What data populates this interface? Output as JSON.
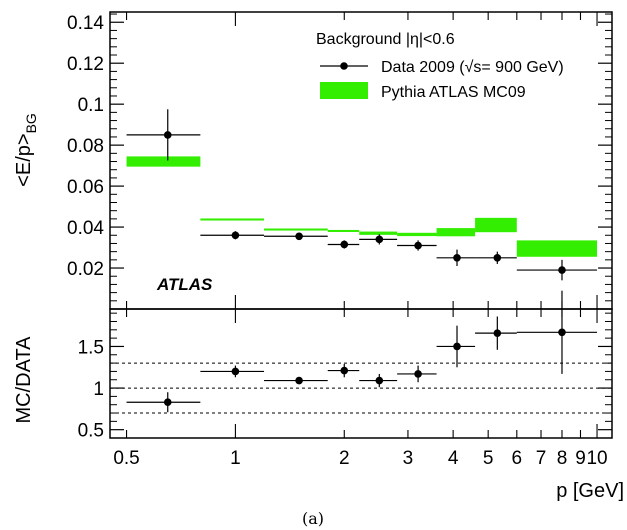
{
  "chart_data": [
    {
      "type": "scatter",
      "panel": "top",
      "ylabel_main": "<E/p>",
      "ylabel_sub": "BG",
      "ylim": [
        0,
        0.145
      ],
      "yticks": [
        {
          "value": 0.02,
          "label": "0.02"
        },
        {
          "value": 0.04,
          "label": "0.04"
        },
        {
          "value": 0.06,
          "label": "0.06"
        },
        {
          "value": 0.08,
          "label": "0.08"
        },
        {
          "value": 0.1,
          "label": "0.1"
        },
        {
          "value": 0.12,
          "label": "0.12"
        },
        {
          "value": 0.14,
          "label": "0.14"
        }
      ],
      "legend_title": "Background |η|<0.6",
      "legend_placement": "top-right",
      "annotation": "ATLAS",
      "series": [
        {
          "name": "Data 2009 (√s= 900 GeV)",
          "kind": "points-with-errors",
          "color": "#000000",
          "points": [
            {
              "x": 0.65,
              "xlo": 0.5,
              "xhi": 0.8,
              "y": 0.085,
              "yerr": 0.0125
            },
            {
              "x": 1.0,
              "xlo": 0.8,
              "xhi": 1.2,
              "y": 0.036,
              "yerr": 0.002
            },
            {
              "x": 1.5,
              "xlo": 1.2,
              "xhi": 1.8,
              "y": 0.0355,
              "yerr": 0.0012
            },
            {
              "x": 2.0,
              "xlo": 1.8,
              "xhi": 2.2,
              "y": 0.0315,
              "yerr": 0.002
            },
            {
              "x": 2.5,
              "xlo": 2.2,
              "xhi": 2.8,
              "y": 0.034,
              "yerr": 0.0025
            },
            {
              "x": 3.2,
              "xlo": 2.8,
              "xhi": 3.6,
              "y": 0.031,
              "yerr": 0.0025
            },
            {
              "x": 4.1,
              "xlo": 3.6,
              "xhi": 4.6,
              "y": 0.025,
              "yerr": 0.004
            },
            {
              "x": 5.3,
              "xlo": 4.6,
              "xhi": 6.0,
              "y": 0.025,
              "yerr": 0.003
            },
            {
              "x": 8.0,
              "xlo": 6.0,
              "xhi": 10.0,
              "y": 0.019,
              "yerr": 0.005
            }
          ]
        },
        {
          "name": "Pythia ATLAS MC09",
          "kind": "bands",
          "color": "#33ee00",
          "bins": [
            {
              "xlo": 0.5,
              "xhi": 0.8,
              "ylo": 0.0695,
              "yhi": 0.0745
            },
            {
              "xlo": 0.8,
              "xhi": 1.2,
              "ylo": 0.0432,
              "yhi": 0.0442
            },
            {
              "xlo": 1.2,
              "xhi": 1.8,
              "ylo": 0.0383,
              "yhi": 0.0393
            },
            {
              "xlo": 1.8,
              "xhi": 2.2,
              "ylo": 0.0376,
              "yhi": 0.0386
            },
            {
              "xlo": 2.2,
              "xhi": 2.8,
              "ylo": 0.0362,
              "yhi": 0.0378
            },
            {
              "xlo": 2.8,
              "xhi": 3.6,
              "ylo": 0.0356,
              "yhi": 0.0372
            },
            {
              "xlo": 3.6,
              "xhi": 4.6,
              "ylo": 0.0355,
              "yhi": 0.0395
            },
            {
              "xlo": 4.6,
              "xhi": 6.0,
              "ylo": 0.0375,
              "yhi": 0.0445
            },
            {
              "xlo": 6.0,
              "xhi": 10.0,
              "ylo": 0.0255,
              "yhi": 0.0335
            }
          ]
        }
      ]
    },
    {
      "type": "scatter",
      "panel": "bottom",
      "ylabel": "MC/DATA",
      "xlabel": "p [GeV]",
      "xscale": "log",
      "xlim": [
        0.45,
        11.0
      ],
      "ylim": [
        0.4,
        1.95
      ],
      "yticks": [
        {
          "value": 0.5,
          "label": "0.5"
        },
        {
          "value": 1.0,
          "label": "1"
        },
        {
          "value": 1.5,
          "label": "1.5"
        }
      ],
      "xticks": [
        {
          "value": 0.5,
          "label": "0.5"
        },
        {
          "value": 1,
          "label": "1"
        },
        {
          "value": 2,
          "label": "2"
        },
        {
          "value": 3,
          "label": "3"
        },
        {
          "value": 4,
          "label": "4"
        },
        {
          "value": 5,
          "label": "5"
        },
        {
          "value": 6,
          "label": "6"
        },
        {
          "value": 7,
          "label": "7"
        },
        {
          "value": 8,
          "label": "8"
        },
        {
          "value": 9,
          "label": "9"
        },
        {
          "value": 10,
          "label": "10"
        }
      ],
      "reference_lines": [
        0.7,
        1.0,
        1.3
      ],
      "series": [
        {
          "kind": "points-with-errors",
          "color": "#000000",
          "points": [
            {
              "x": 0.65,
              "xlo": 0.5,
              "xhi": 0.8,
              "y": 0.83,
              "yerr": 0.12
            },
            {
              "x": 1.0,
              "xlo": 0.8,
              "xhi": 1.2,
              "y": 1.2,
              "yerr": 0.07
            },
            {
              "x": 1.5,
              "xlo": 1.2,
              "xhi": 1.8,
              "y": 1.09,
              "yerr": 0.04
            },
            {
              "x": 2.0,
              "xlo": 1.8,
              "xhi": 2.2,
              "y": 1.21,
              "yerr": 0.08
            },
            {
              "x": 2.5,
              "xlo": 2.2,
              "xhi": 2.8,
              "y": 1.09,
              "yerr": 0.08
            },
            {
              "x": 3.2,
              "xlo": 2.8,
              "xhi": 3.6,
              "y": 1.17,
              "yerr": 0.1
            },
            {
              "x": 4.1,
              "xlo": 3.6,
              "xhi": 4.6,
              "y": 1.5,
              "yerr": 0.25
            },
            {
              "x": 5.3,
              "xlo": 4.6,
              "xhi": 6.0,
              "y": 1.66,
              "yerr": 0.2
            },
            {
              "x": 8.0,
              "xlo": 6.0,
              "xhi": 10.0,
              "y": 1.67,
              "yerr": 0.5
            }
          ]
        }
      ]
    }
  ],
  "caption": "(a)"
}
